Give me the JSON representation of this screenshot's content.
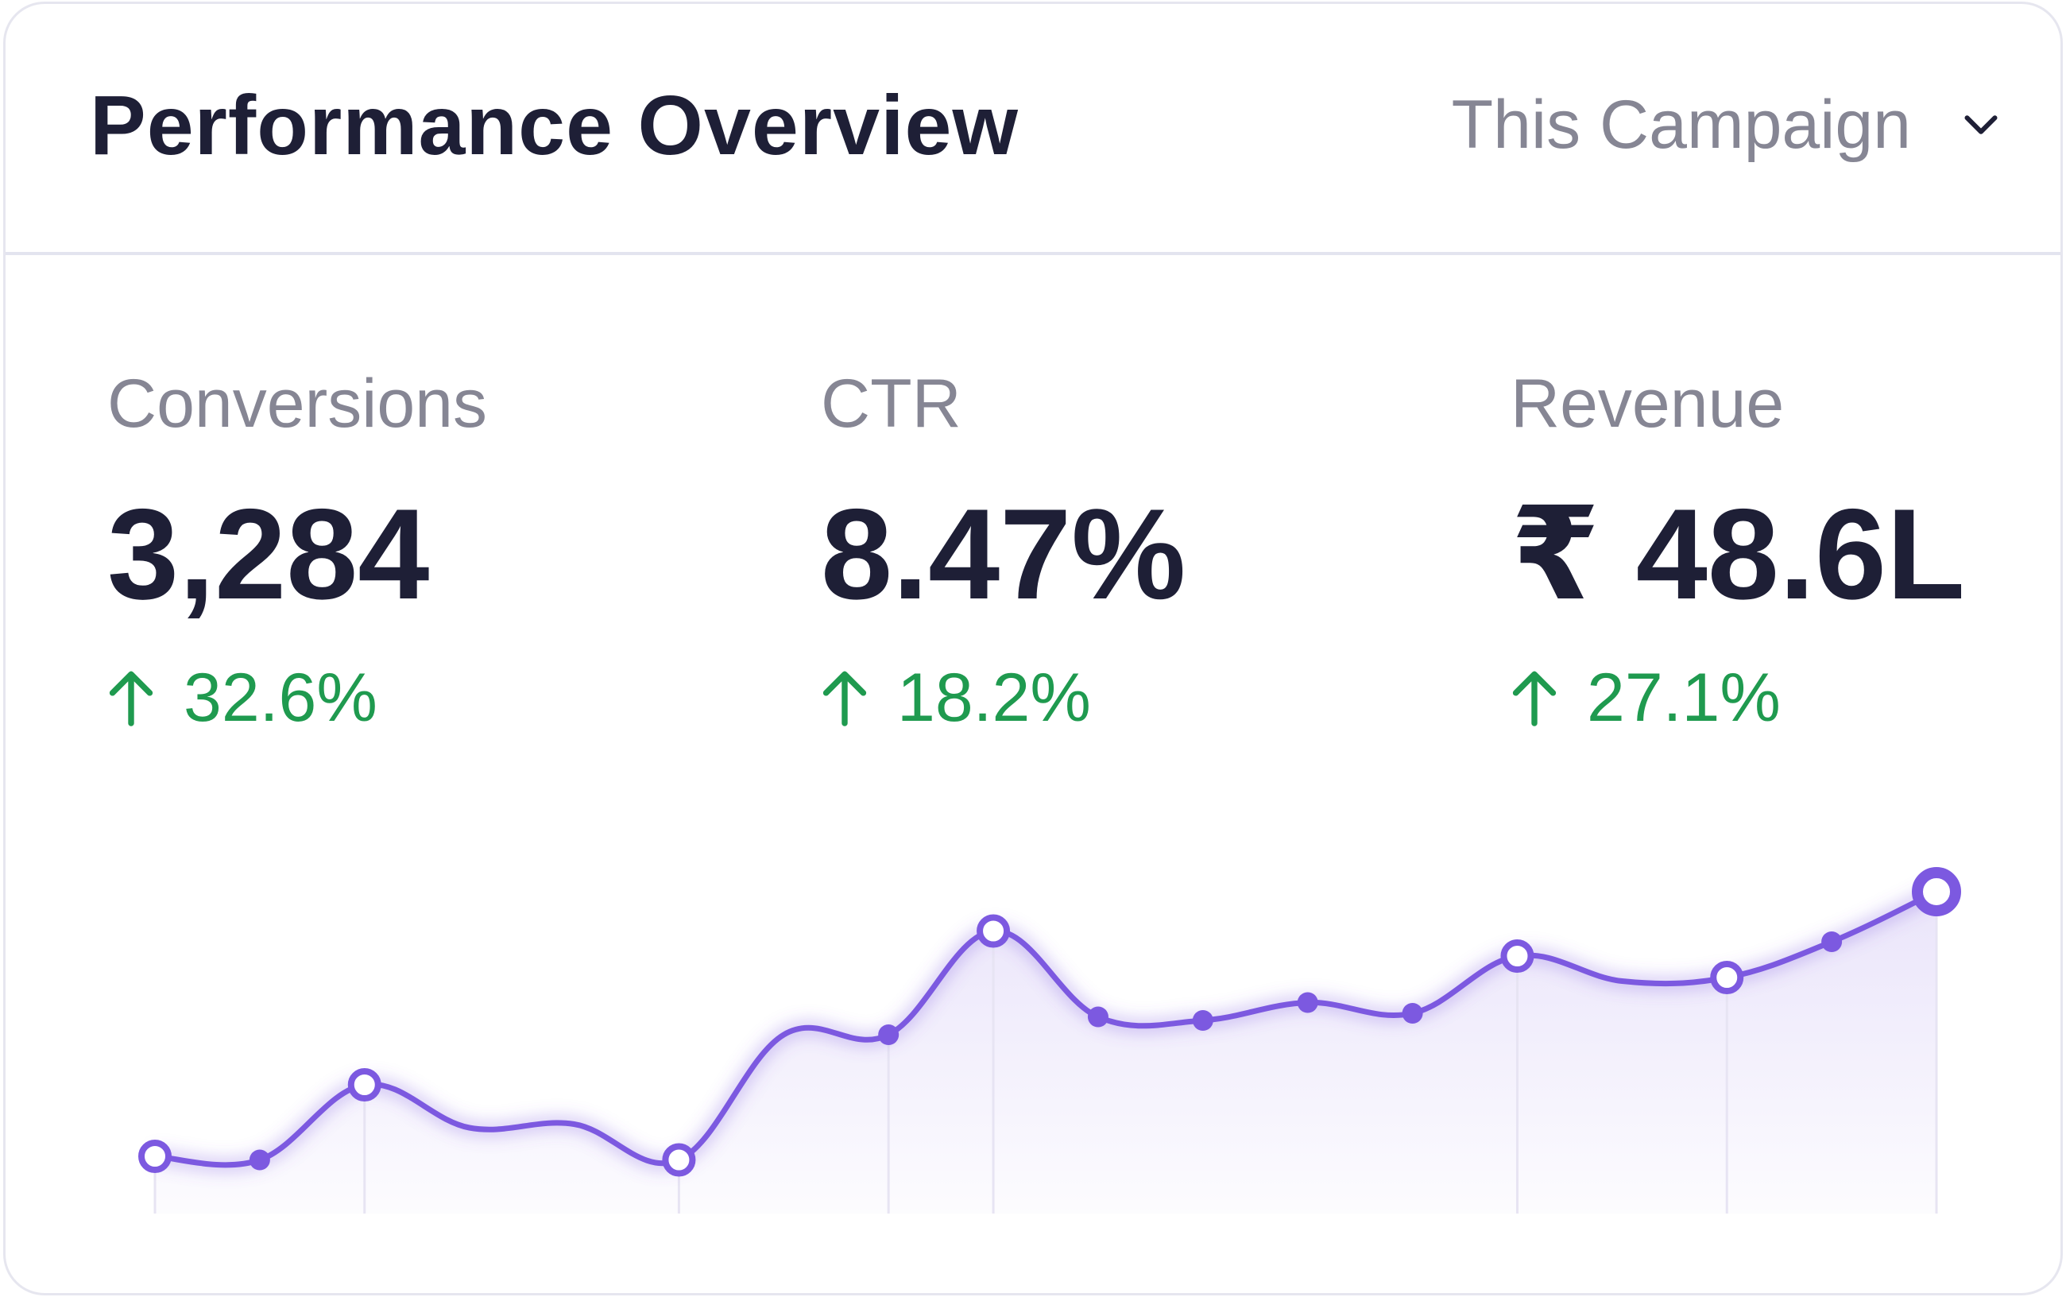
{
  "header": {
    "title": "Performance Overview",
    "selector": {
      "selected": "This Campaign",
      "icon": "chevron-down-icon"
    }
  },
  "metrics": [
    {
      "label": "Conversions",
      "value": "3,284",
      "change": "32.6%",
      "trend_icon": "arrow-up-icon"
    },
    {
      "label": "CTR",
      "value": "8.47%",
      "change": "18.2%",
      "trend_icon": "arrow-up-icon"
    },
    {
      "label": "Revenue",
      "value": "₹ 48.6L",
      "change": "27.1%",
      "trend_icon": "arrow-up-icon"
    }
  ],
  "colors": {
    "line": "#7c59e0",
    "positive": "#1f9a4f",
    "title": "#1e1f36",
    "muted": "#868694",
    "gridline": "#e7e4f3"
  },
  "chart_data": {
    "type": "area",
    "x": [
      0,
      1,
      2,
      3,
      4,
      5,
      6,
      7,
      8,
      9,
      10,
      11,
      12,
      13,
      14,
      15,
      16,
      17
    ],
    "values": [
      16,
      15,
      36,
      24,
      25,
      15,
      50,
      50,
      79,
      55,
      54,
      59,
      56,
      72,
      65,
      66,
      76,
      90
    ],
    "markers": [
      "hollow",
      "filled",
      "hollow",
      "none",
      "none",
      "hollow",
      "none",
      "filled",
      "hollow",
      "filled",
      "filled",
      "filled",
      "filled",
      "hollow",
      "none",
      "hollow",
      "filled",
      "hollow"
    ],
    "title": "",
    "xlabel": "",
    "ylabel": "",
    "ylim": [
      0,
      100
    ],
    "grid": false,
    "legend": "none"
  }
}
